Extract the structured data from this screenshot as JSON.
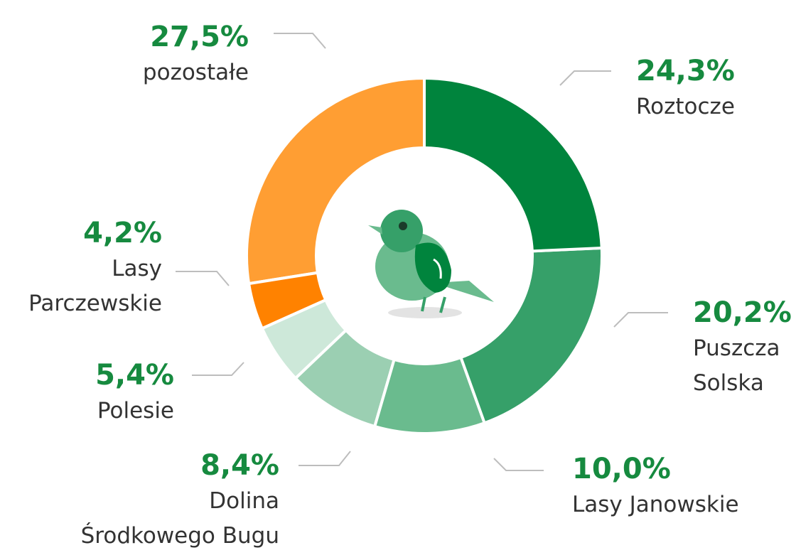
{
  "chart_data": {
    "type": "donut",
    "categories": [
      "Roztocze",
      "Puszcza\nSolska",
      "Lasy Janowskie",
      "Dolina\nŚrodkowego Bugu",
      "Polesie",
      "Lasy\nParczewskie",
      "pozostałe"
    ],
    "values": [
      24.3,
      20.2,
      10.0,
      8.4,
      5.4,
      4.2,
      27.5
    ],
    "value_labels": [
      "24,3%",
      "20,2%",
      "10,0%",
      "8,4%",
      "5,4%",
      "4,2%",
      "27,5%"
    ],
    "colors": [
      "#00843d",
      "#36a069",
      "#6abb8e",
      "#9bcfb2",
      "#cde8d9",
      "#ff8200",
      "#ff9e33"
    ]
  }
}
